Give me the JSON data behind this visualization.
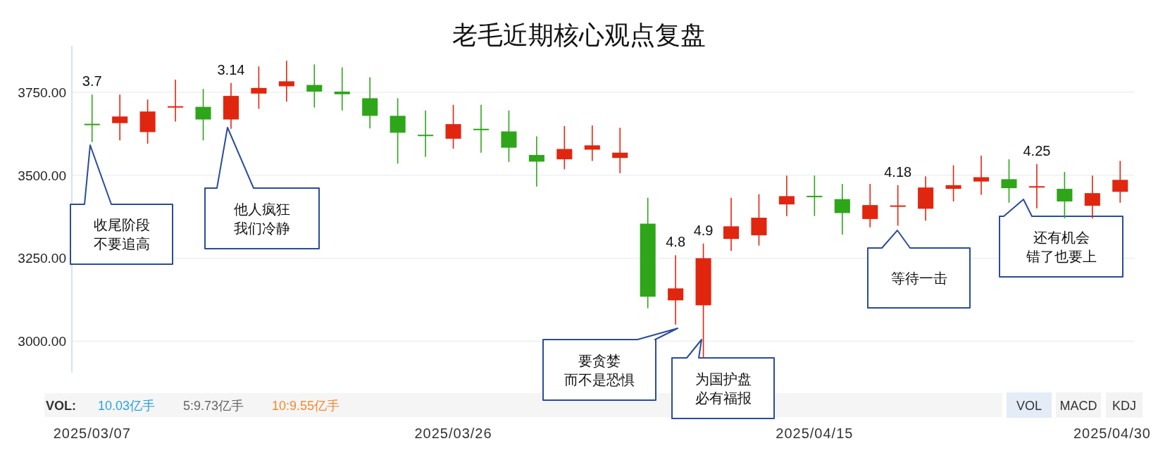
{
  "chart_data": {
    "type": "candlestick",
    "title": "老毛近期核心观点复盘",
    "categories": [
      "2025/03/07",
      null,
      null,
      null,
      null,
      null,
      null,
      null,
      null,
      null,
      null,
      null,
      null,
      "2025/03/26",
      null,
      null,
      null,
      null,
      null,
      null,
      null,
      null,
      null,
      null,
      null,
      null,
      "2025/04/15",
      null,
      null,
      null,
      null,
      null,
      null,
      null,
      null,
      null,
      null,
      "2025/04/30"
    ],
    "ohlc": [
      [
        3655,
        3743,
        3600,
        3652
      ],
      [
        3657,
        3743,
        3605,
        3677
      ],
      [
        3630,
        3728,
        3595,
        3692
      ],
      [
        3705,
        3788,
        3662,
        3708
      ],
      [
        3706,
        3760,
        3605,
        3668
      ],
      [
        3668,
        3778,
        3640,
        3739
      ],
      [
        3746,
        3828,
        3700,
        3763
      ],
      [
        3768,
        3845,
        3722,
        3783
      ],
      [
        3772,
        3834,
        3704,
        3752
      ],
      [
        3752,
        3825,
        3695,
        3744
      ],
      [
        3732,
        3795,
        3641,
        3679
      ],
      [
        3679,
        3732,
        3535,
        3628
      ],
      [
        3622,
        3695,
        3555,
        3620
      ],
      [
        3610,
        3712,
        3580,
        3654
      ],
      [
        3640,
        3712,
        3568,
        3638
      ],
      [
        3632,
        3695,
        3540,
        3583
      ],
      [
        3561,
        3617,
        3466,
        3541
      ],
      [
        3548,
        3648,
        3518,
        3579
      ],
      [
        3577,
        3650,
        3543,
        3590
      ],
      [
        3552,
        3643,
        3506,
        3568
      ],
      [
        3354,
        3432,
        3099,
        3134
      ],
      [
        3123,
        3259,
        3050,
        3159
      ],
      [
        3108,
        3294,
        2950,
        3250
      ],
      [
        3308,
        3432,
        3272,
        3346
      ],
      [
        3319,
        3443,
        3288,
        3372
      ],
      [
        3412,
        3499,
        3377,
        3437
      ],
      [
        3438,
        3499,
        3377,
        3436
      ],
      [
        3428,
        3474,
        3321,
        3386
      ],
      [
        3368,
        3474,
        3343,
        3410
      ],
      [
        3407,
        3470,
        3348,
        3409
      ],
      [
        3399,
        3497,
        3363,
        3463
      ],
      [
        3459,
        3530,
        3421,
        3470
      ],
      [
        3481,
        3559,
        3441,
        3494
      ],
      [
        3488,
        3548,
        3417,
        3461
      ],
      [
        3465,
        3534,
        3400,
        3467
      ],
      [
        3459,
        3510,
        3370,
        3421
      ],
      [
        3408,
        3499,
        3370,
        3446
      ],
      [
        3450,
        3543,
        3417,
        3486
      ]
    ],
    "colors": [
      "#2fa51a",
      "#e1260f",
      "#e1260f",
      "#e1260f",
      "#2fa51a",
      "#e1260f",
      "#e1260f",
      "#e1260f",
      "#2fa51a",
      "#2fa51a",
      "#2fa51a",
      "#2fa51a",
      "#2fa51a",
      "#e1260f",
      "#2fa51a",
      "#2fa51a",
      "#2fa51a",
      "#e1260f",
      "#e1260f",
      "#e1260f",
      "#2fa51a",
      "#e1260f",
      "#e1260f",
      "#e1260f",
      "#e1260f",
      "#e1260f",
      "#2fa51a",
      "#2fa51a",
      "#e1260f",
      "#e1260f",
      "#e1260f",
      "#e1260f",
      "#e1260f",
      "#2fa51a",
      "#e1260f",
      "#2fa51a",
      "#e1260f",
      "#e1260f"
    ],
    "value_labels": [
      "3.7",
      null,
      null,
      null,
      null,
      "3.14",
      null,
      null,
      null,
      null,
      null,
      null,
      null,
      null,
      null,
      null,
      null,
      null,
      null,
      null,
      null,
      "4.8",
      "4.9",
      null,
      null,
      null,
      null,
      null,
      null,
      "4.18",
      null,
      null,
      null,
      null,
      "4.25",
      null,
      null,
      null
    ],
    "ylim": [
      2905,
      3890
    ],
    "yticks": [
      {
        "value": 3000,
        "label": "3000.00"
      },
      {
        "value": 3250,
        "label": "3250.00"
      },
      {
        "value": 3500,
        "label": "3500.00"
      },
      {
        "value": 3750,
        "label": "3750.00"
      }
    ],
    "grid": "y",
    "annotations": [
      "收尾阶段不要追高",
      "他人疯狂我们冷静",
      "要贪婪而不是恐惧",
      "为国护盘必有福报",
      "等待一击",
      "还有机会错了也要上",
      "VOL:",
      "10.03亿手",
      "5:9.73亿手",
      "10:9.55亿手",
      "VOL",
      "MACD",
      "KDJ"
    ]
  }
}
